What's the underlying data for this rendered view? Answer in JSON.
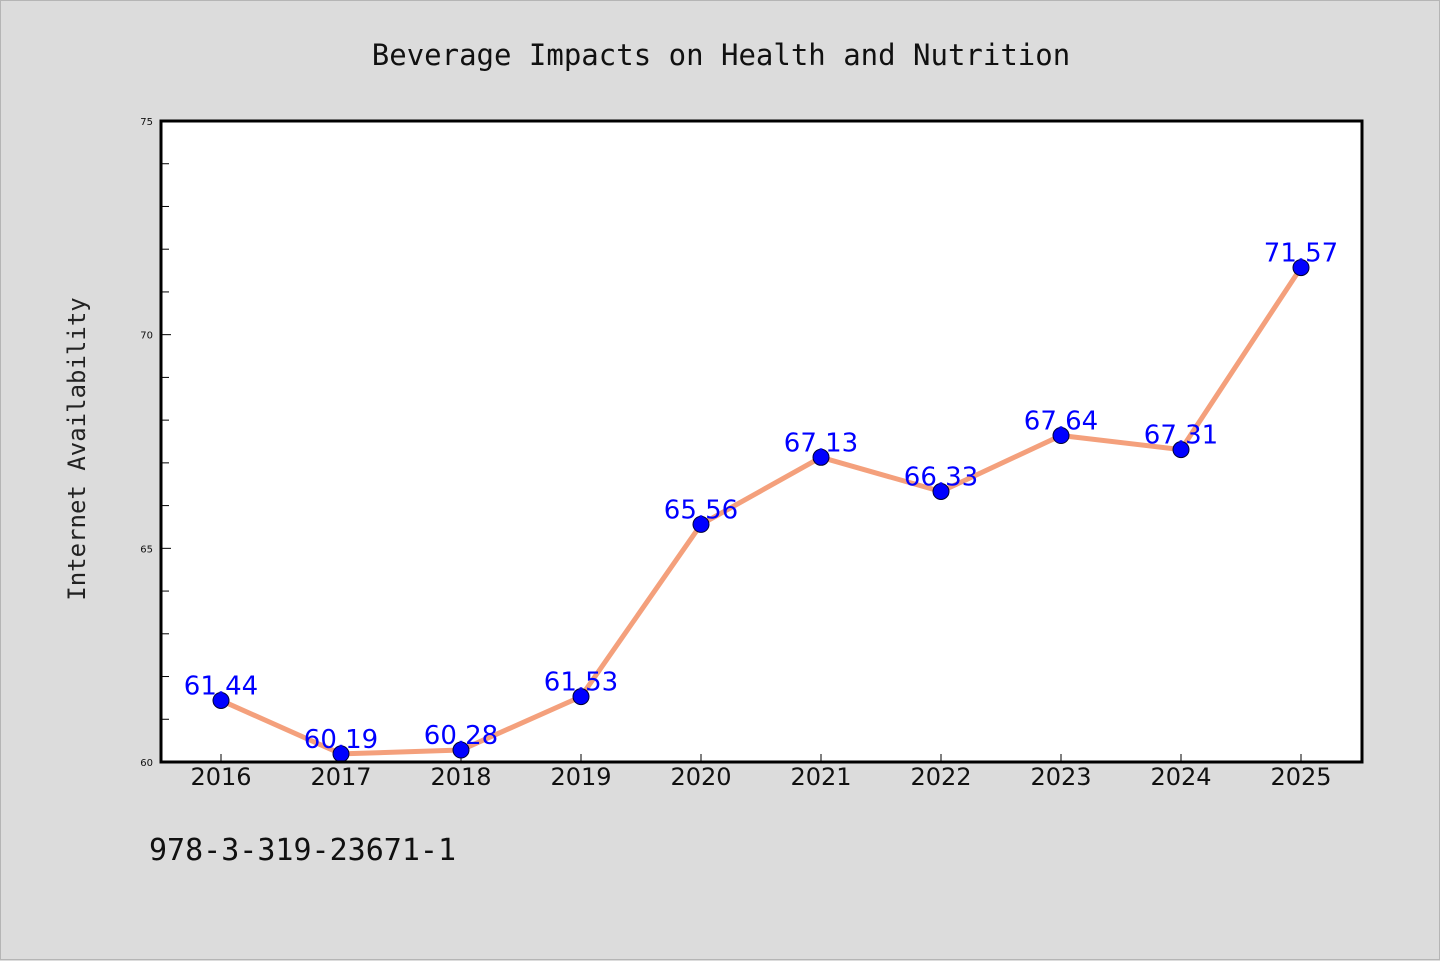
{
  "chart_data": {
    "type": "line",
    "title": "Beverage Impacts on Health and Nutrition",
    "xlabel": "",
    "ylabel": "Internet Availability",
    "categories": [
      "2016",
      "2017",
      "2018",
      "2019",
      "2020",
      "2021",
      "2022",
      "2023",
      "2024",
      "2025"
    ],
    "values": [
      61.44,
      60.19,
      60.28,
      61.53,
      65.56,
      67.13,
      66.33,
      67.64,
      67.31,
      71.57
    ],
    "data_labels": [
      "61.44",
      "60.19",
      "60.28",
      "61.53",
      "65.56",
      "67.13",
      "66.33",
      "67.64",
      "67.31",
      "71.57"
    ],
    "ylim": [
      60,
      75
    ],
    "yticks": [
      "60",
      "65",
      "70",
      "75"
    ],
    "grid": false,
    "legend": "none",
    "colors": {
      "line": "#f4a07c",
      "marker": "#0000ff",
      "labels": "#0000ff",
      "background": "#dcdcdc",
      "plot_area": "#ffffff"
    }
  },
  "footnote": "978-3-319-23671-1"
}
